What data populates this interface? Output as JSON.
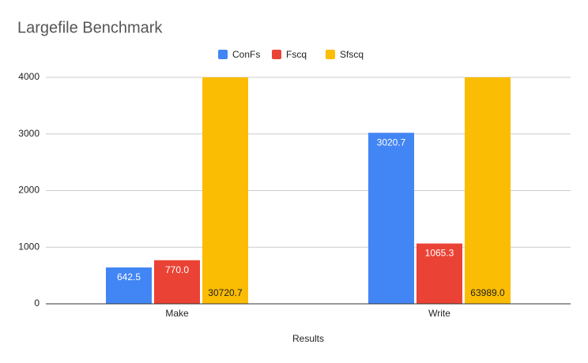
{
  "chart_data": {
    "type": "bar",
    "title": "Largefile Benchmark",
    "x_label": "Results",
    "categories": [
      "Make",
      "Write"
    ],
    "series": [
      {
        "name": "ConFs",
        "color": "#4285f4",
        "values": [
          642.5,
          3020.7
        ],
        "value_labels": [
          "642.5",
          "3020.7"
        ]
      },
      {
        "name": "Fscq",
        "color": "#ea4335",
        "values": [
          770.0,
          1065.3
        ],
        "value_labels": [
          "770.0",
          "1065.3"
        ]
      },
      {
        "name": "Sfscq",
        "color": "#fbbc04",
        "values": [
          30720.7,
          63989.0
        ],
        "value_labels": [
          "30720.7",
          "63989.0"
        ]
      }
    ],
    "ylim": [
      0,
      4000
    ],
    "yticks": [
      0,
      1000,
      2000,
      3000,
      4000
    ],
    "grid": true,
    "legend": "top"
  }
}
